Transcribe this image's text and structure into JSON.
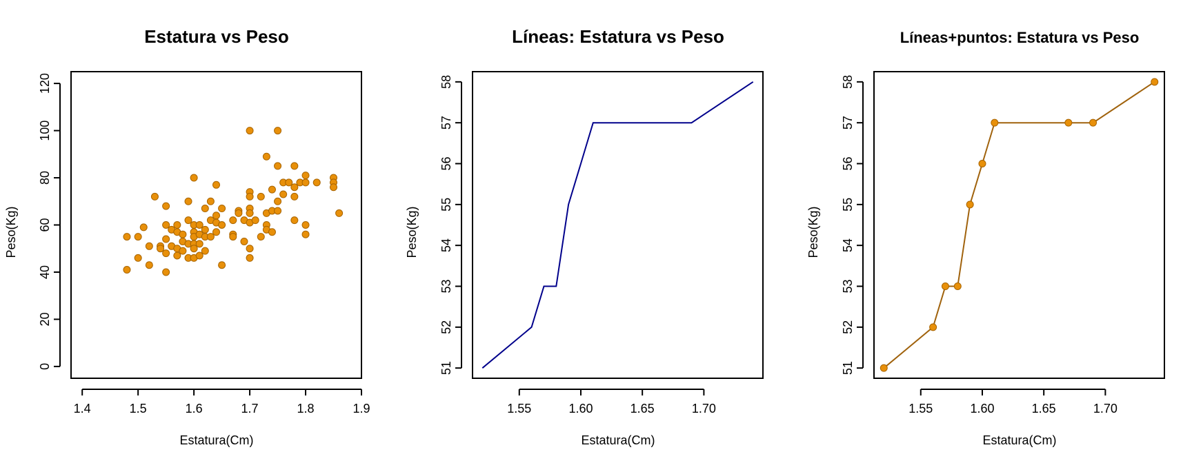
{
  "colors": {
    "orange": "#e8900a",
    "orange_dark": "#a86400",
    "brown_line": "#a0620c",
    "navy": "#00008b"
  },
  "chart_data": [
    {
      "type": "scatter",
      "title": "Estatura vs Peso",
      "xlabel": "Estatura(Cm)",
      "ylabel": "Peso(Kg)",
      "xlim": [
        1.38,
        1.9
      ],
      "ylim": [
        -5,
        125
      ],
      "xticks": [
        1.4,
        1.5,
        1.6,
        1.7,
        1.8,
        1.9
      ],
      "xtick_labels": [
        "1.4",
        "1.5",
        "1.6",
        "1.7",
        "1.8",
        "1.9"
      ],
      "yticks": [
        0,
        20,
        40,
        60,
        80,
        100,
        120
      ],
      "ytick_labels": [
        "0",
        "20",
        "40",
        "60",
        "80",
        "100",
        "120"
      ],
      "grid": false,
      "series": [
        {
          "color": "orange",
          "marker": "filled-circle",
          "x": [
            1.48,
            1.48,
            1.5,
            1.5,
            1.51,
            1.52,
            1.52,
            1.53,
            1.54,
            1.54,
            1.55,
            1.55,
            1.55,
            1.55,
            1.55,
            1.56,
            1.56,
            1.57,
            1.57,
            1.57,
            1.57,
            1.58,
            1.58,
            1.58,
            1.59,
            1.59,
            1.59,
            1.59,
            1.6,
            1.6,
            1.6,
            1.6,
            1.6,
            1.6,
            1.6,
            1.61,
            1.61,
            1.61,
            1.61,
            1.62,
            1.62,
            1.62,
            1.62,
            1.63,
            1.63,
            1.63,
            1.64,
            1.64,
            1.64,
            1.64,
            1.65,
            1.65,
            1.65,
            1.67,
            1.67,
            1.67,
            1.68,
            1.68,
            1.69,
            1.69,
            1.7,
            1.7,
            1.7,
            1.7,
            1.7,
            1.7,
            1.7,
            1.7,
            1.71,
            1.72,
            1.72,
            1.73,
            1.73,
            1.73,
            1.73,
            1.74,
            1.74,
            1.74,
            1.75,
            1.75,
            1.75,
            1.75,
            1.76,
            1.76,
            1.77,
            1.78,
            1.78,
            1.78,
            1.78,
            1.79,
            1.8,
            1.8,
            1.8,
            1.8,
            1.82,
            1.85,
            1.85,
            1.85,
            1.86
          ],
          "y": [
            55,
            41,
            55,
            46,
            59,
            51,
            43,
            72,
            51,
            50,
            68,
            60,
            54,
            48,
            40,
            58,
            51,
            60,
            57,
            50,
            47,
            56,
            53,
            49,
            70,
            62,
            52,
            46,
            80,
            60,
            57,
            55,
            52,
            50,
            46,
            60,
            56,
            52,
            47,
            67,
            58,
            55,
            49,
            70,
            62,
            55,
            77,
            64,
            61,
            57,
            67,
            60,
            43,
            62,
            56,
            55,
            66,
            65,
            62,
            53,
            100,
            74,
            72,
            67,
            65,
            61,
            50,
            46,
            62,
            72,
            55,
            89,
            65,
            60,
            58,
            75,
            66,
            57,
            100,
            85,
            70,
            66,
            78,
            73,
            78,
            85,
            76,
            72,
            62,
            78,
            81,
            78,
            60,
            56,
            78,
            80,
            78,
            76,
            65
          ]
        }
      ]
    },
    {
      "type": "line",
      "title": "Líneas: Estatura vs Peso",
      "xlabel": "Estatura(Cm)",
      "ylabel": "Peso(Kg)",
      "xlim": [
        1.512,
        1.748
      ],
      "ylim": [
        50.75,
        58.25
      ],
      "xticks": [
        1.55,
        1.6,
        1.65,
        1.7
      ],
      "xtick_labels": [
        "1.55",
        "1.60",
        "1.65",
        "1.70"
      ],
      "yticks": [
        51,
        52,
        53,
        54,
        55,
        56,
        57,
        58
      ],
      "ytick_labels": [
        "51",
        "52",
        "53",
        "54",
        "55",
        "56",
        "57",
        "58"
      ],
      "grid": false,
      "series": [
        {
          "color": "navy",
          "marker": "none",
          "x": [
            1.52,
            1.56,
            1.57,
            1.58,
            1.59,
            1.6,
            1.61,
            1.67,
            1.69,
            1.74
          ],
          "y": [
            51,
            52,
            53,
            53,
            55,
            56,
            57,
            57,
            57,
            58
          ]
        }
      ]
    },
    {
      "type": "line",
      "title": "Líneas+puntos: Estatura vs Peso",
      "xlabel": "Estatura(Cm)",
      "ylabel": "Peso(Kg)",
      "xlim": [
        1.512,
        1.748
      ],
      "ylim": [
        50.75,
        58.25
      ],
      "xticks": [
        1.55,
        1.6,
        1.65,
        1.7
      ],
      "xtick_labels": [
        "1.55",
        "1.60",
        "1.65",
        "1.70"
      ],
      "yticks": [
        51,
        52,
        53,
        54,
        55,
        56,
        57,
        58
      ],
      "ytick_labels": [
        "51",
        "52",
        "53",
        "54",
        "55",
        "56",
        "57",
        "58"
      ],
      "grid": false,
      "series": [
        {
          "color": "brown_line",
          "marker": "filled-circle",
          "x": [
            1.52,
            1.56,
            1.57,
            1.58,
            1.59,
            1.6,
            1.61,
            1.67,
            1.69,
            1.74
          ],
          "y": [
            51,
            52,
            53,
            53,
            55,
            56,
            57,
            57,
            57,
            58
          ]
        }
      ]
    }
  ]
}
